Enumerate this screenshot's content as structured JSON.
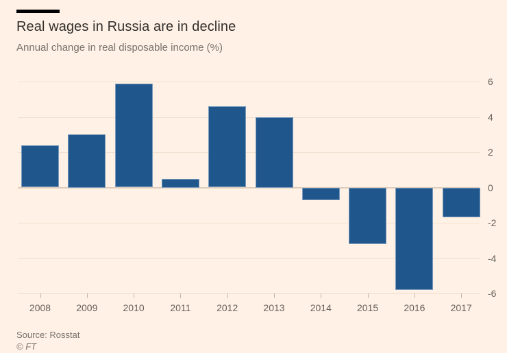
{
  "header": {
    "title": "Real wages in Russia are in decline",
    "subtitle": "Annual change in real disposable income (%)"
  },
  "chart_data": {
    "type": "bar",
    "title": "Real wages in Russia are in decline",
    "subtitle": "Annual change in real disposable income (%)",
    "categories": [
      "2008",
      "2009",
      "2010",
      "2011",
      "2012",
      "2013",
      "2014",
      "2015",
      "2016",
      "2017"
    ],
    "values": [
      2.4,
      3.0,
      5.9,
      0.5,
      4.6,
      4.0,
      -0.7,
      -3.2,
      -5.8,
      -1.7
    ],
    "ylim": [
      -6,
      6
    ],
    "yticks": [
      6,
      4,
      2,
      0,
      -2,
      -4,
      -6
    ],
    "xlabel": "",
    "ylabel": "",
    "grid": true,
    "legend": false,
    "yaxis_position": "right",
    "colors": {
      "bar": "#1f568c",
      "background": "#fff1e5",
      "gridline": "#f2e0d0",
      "zero_line": "#ddccbc",
      "tick": "#c5b8a9",
      "axis_text": "#66605b",
      "title_text": "#33302e",
      "subtitle_text": "#77716b",
      "rule": "#000000"
    }
  },
  "footer": {
    "source": "Source: Rosstat",
    "copyright": "© FT"
  }
}
